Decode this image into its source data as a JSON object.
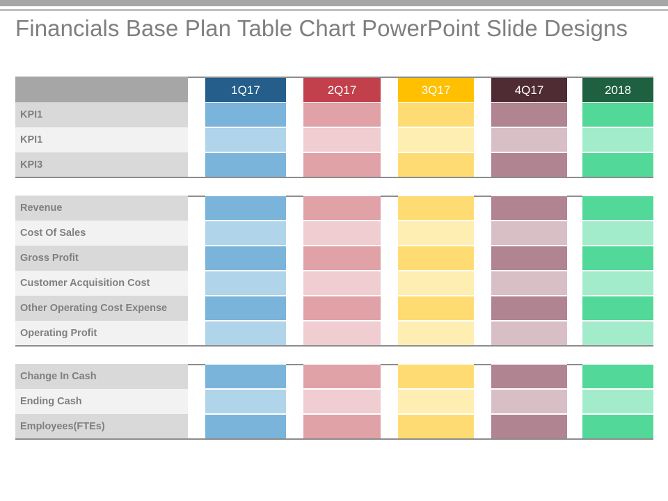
{
  "title": "Financials Base Plan Table Chart PowerPoint Slide Designs",
  "columns": [
    {
      "label": "1Q17",
      "header_color": "#255e8a",
      "dark": "#7bb4da",
      "light": "#b0d4ea"
    },
    {
      "label": "2Q17",
      "header_color": "#c2404b",
      "dark": "#e0a1a7",
      "light": "#efcdd1"
    },
    {
      "label": "3Q17",
      "header_color": "#fec000",
      "dark": "#fedc73",
      "light": "#feeeb2"
    },
    {
      "label": "4Q17",
      "header_color": "#4f2b34",
      "dark": "#b08490",
      "light": "#d8bfc5"
    },
    {
      "label": "2018",
      "header_color": "#1e6040",
      "dark": "#52d898",
      "light": "#a3eccb"
    }
  ],
  "sections": [
    {
      "rows": [
        "KPI1",
        "KPI1",
        "KPI3"
      ]
    },
    {
      "rows": [
        "Revenue",
        "Cost Of Sales",
        "Gross Profit",
        "Customer Acquisition Cost",
        "Other Operating Cost Expense",
        "Operating Profit"
      ]
    },
    {
      "rows": [
        "Change In Cash",
        "Ending Cash",
        "Employees(FTEs)"
      ]
    }
  ]
}
